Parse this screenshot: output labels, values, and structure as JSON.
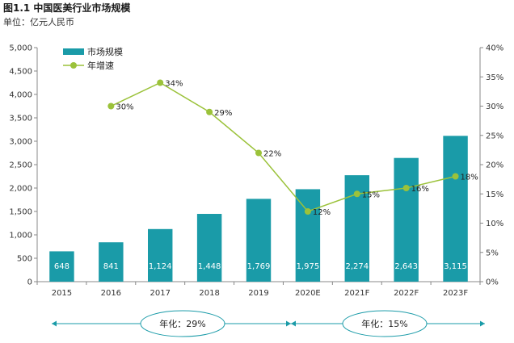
{
  "chart_data": {
    "type": "bar",
    "title": "图1.1 中国医美行业市场规模",
    "subtitle": "单位：亿元人民币",
    "categories": [
      "2015",
      "2016",
      "2017",
      "2018",
      "2019",
      "2020E",
      "2021F",
      "2022F",
      "2023F"
    ],
    "series": [
      {
        "name": "市场规模",
        "type": "bar",
        "axis": "left",
        "values": [
          648,
          841,
          1124,
          1448,
          1769,
          1975,
          2274,
          2643,
          3115
        ],
        "labels": [
          "648",
          "841",
          "1,124",
          "1,448",
          "1,769",
          "1,975",
          "2,274",
          "2,643",
          "3,115"
        ],
        "color": "#1a9ba8"
      },
      {
        "name": "年增速",
        "type": "line",
        "axis": "right",
        "values": [
          null,
          30,
          34,
          29,
          22,
          12,
          15,
          16,
          18
        ],
        "labels": [
          "",
          "30%",
          "34%",
          "29%",
          "22%",
          "12%",
          "15%",
          "16%",
          "18%"
        ],
        "color": "#9bc23a"
      }
    ],
    "ylim_left": [
      0,
      5000
    ],
    "ylim_right": [
      0,
      40
    ],
    "yticks_left": [
      "0",
      "500",
      "1,000",
      "1,500",
      "2,000",
      "2,500",
      "3,000",
      "3,500",
      "4,000",
      "4,500",
      "5,000"
    ],
    "yticks_right": [
      "0%",
      "5%",
      "10%",
      "15%",
      "20%",
      "25%",
      "30%",
      "35%",
      "40%"
    ],
    "legend_position": "top-left",
    "annotations": [
      {
        "text": "年化：29%",
        "span": [
          "2015",
          "2019"
        ]
      },
      {
        "text": "年化：15%",
        "span": [
          "2020E",
          "2023F"
        ]
      }
    ]
  }
}
